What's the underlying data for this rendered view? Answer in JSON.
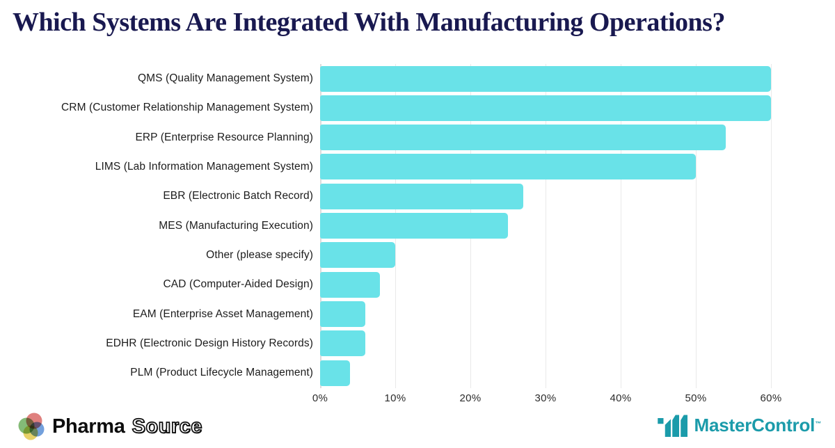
{
  "title": "Which Systems Are Integrated With Manufacturing Operations?",
  "chart_data": {
    "type": "bar",
    "orientation": "horizontal",
    "title": "Which Systems Are Integrated With Manufacturing Operations?",
    "categories": [
      "QMS (Quality Management System)",
      "CRM (Customer Relationship Management System)",
      "ERP (Enterprise Resource Planning)",
      "LIMS (Lab Information Management System)",
      "EBR (Electronic Batch Record)",
      "MES (Manufacturing Execution)",
      "Other (please specify)",
      "CAD (Computer-Aided Design)",
      "EAM (Enterprise Asset Management)",
      "EDHR (Electronic Design History Records)",
      "PLM (Product Lifecycle Management)"
    ],
    "values": [
      60,
      60,
      54,
      50,
      27,
      25,
      10,
      8,
      6,
      6,
      4
    ],
    "unit": "%",
    "xlim": [
      0,
      68.5
    ],
    "x_ticks": [
      {
        "value": 0,
        "label": "0%"
      },
      {
        "value": 10,
        "label": "10%"
      },
      {
        "value": 20,
        "label": "20%"
      },
      {
        "value": 30,
        "label": "30%"
      },
      {
        "value": 40,
        "label": "40%"
      },
      {
        "value": 50,
        "label": "50%"
      },
      {
        "value": 60,
        "label": "60%"
      }
    ],
    "grid": true,
    "legend": false,
    "bar_color": "#69E2E8"
  },
  "footer": {
    "pharmasource_part1": "Pharma",
    "pharmasource_part2": "Source",
    "mastercontrol_name": "MasterControl",
    "mastercontrol_trademark": "™"
  },
  "colors": {
    "bar": "#69E2E8",
    "title": "#191950",
    "gridline": "#E9E9E9",
    "label_text": "#1C1C1C",
    "mastercontrol_teal": "#1B9BAA",
    "pharmasource_red": "#D96A67",
    "pharmasource_green": "#6FAF5F",
    "pharmasource_blue": "#5A8FD6",
    "pharmasource_yellow": "#E3C94E"
  }
}
